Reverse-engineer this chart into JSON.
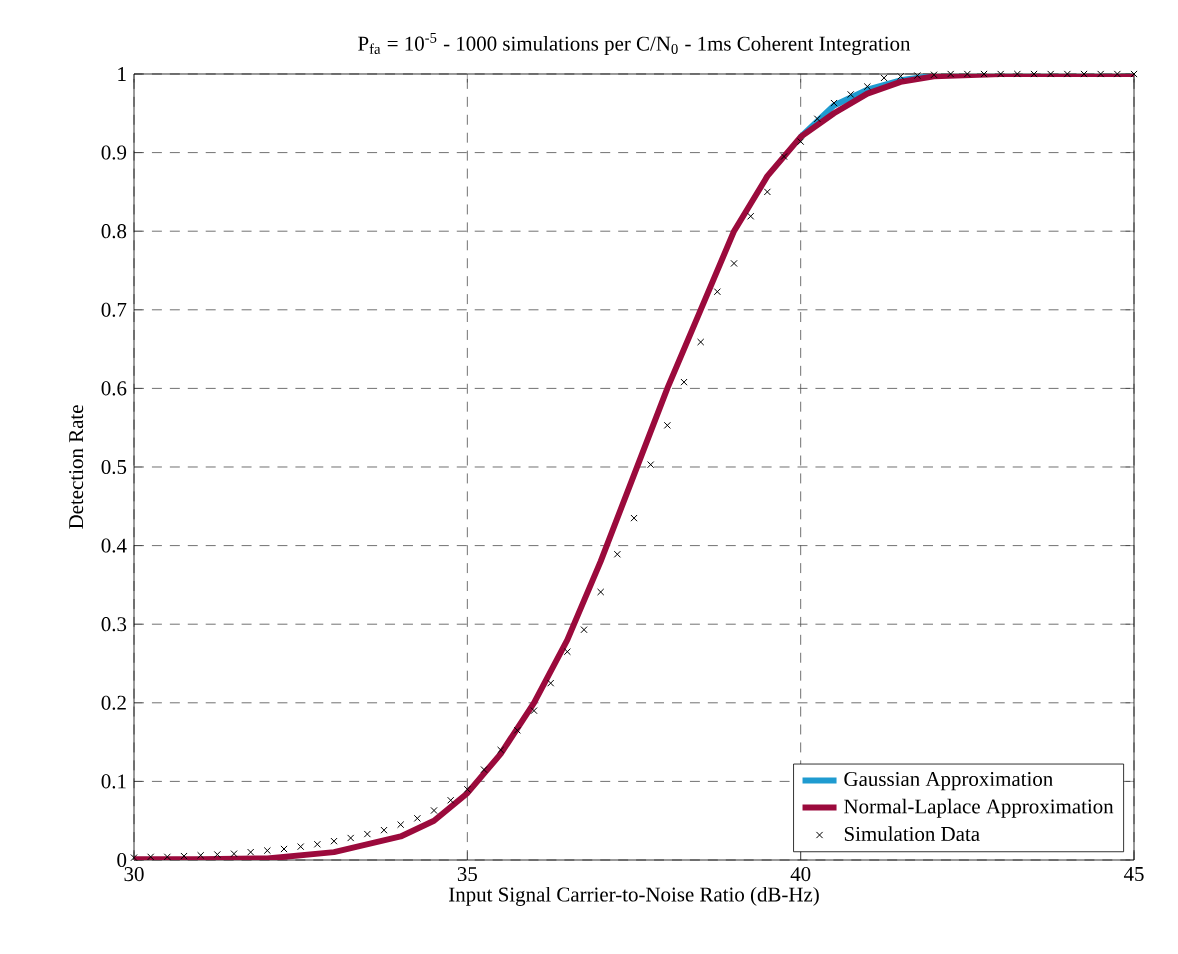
{
  "chart_data": {
    "type": "line",
    "title": "P$_{fa}$ = 10$^{-5}$ - 1000 simulations per C/N$_{0}$ - 1ms Coherent Integration",
    "xlabel": "Input Signal Carrier-to-Noise Ratio (dB-Hz)",
    "ylabel": "Detection Rate",
    "xlim": [
      30,
      45
    ],
    "ylim": [
      0,
      1
    ],
    "xticks": [
      30,
      35,
      40,
      45
    ],
    "yticks": [
      0,
      0.1,
      0.2,
      0.3,
      0.4,
      0.5,
      0.6,
      0.7,
      0.8,
      0.9,
      1
    ],
    "grid": true,
    "legend": "bottom right",
    "line_style": "solid",
    "series": [
      {
        "name": "Gaussian Approximation",
        "color": "#1f9bd0",
        "x": [
          40,
          40.5,
          41,
          41.5,
          42
        ],
        "values": [
          0.92,
          0.96,
          0.98,
          0.992,
          0.998
        ]
      },
      {
        "name": "Normal-Laplace Approximation",
        "color": "#9b0a3c",
        "x": [
          30,
          31,
          32,
          33,
          34,
          34.5,
          35,
          35.5,
          36,
          36.5,
          37,
          37.5,
          38,
          38.5,
          39,
          39.5,
          40,
          40.5,
          41,
          41.5,
          42,
          43,
          44,
          45
        ],
        "values": [
          0.001,
          0.001,
          0.002,
          0.01,
          0.03,
          0.05,
          0.085,
          0.135,
          0.2,
          0.28,
          0.38,
          0.49,
          0.6,
          0.7,
          0.8,
          0.87,
          0.92,
          0.95,
          0.975,
          0.99,
          0.997,
          1,
          1,
          1
        ]
      },
      {
        "name": "Simulation Data",
        "type": "scatter",
        "marker": "cross",
        "color": "#000000",
        "x": [
          30,
          30.25,
          30.5,
          30.75,
          31,
          31.25,
          31.5,
          31.75,
          32,
          32.25,
          32.5,
          32.75,
          33,
          33.25,
          33.5,
          33.75,
          34,
          34.25,
          34.5,
          34.75,
          35,
          35.25,
          35.5,
          35.75,
          36,
          36.25,
          36.5,
          36.75,
          37,
          37.25,
          37.5,
          37.75,
          38,
          38.25,
          38.5,
          38.75,
          39,
          39.25,
          39.5,
          39.75,
          40,
          40.25,
          40.5,
          40.75,
          41,
          41.25,
          41.5,
          41.75,
          42,
          42.25,
          42.5,
          42.75,
          43,
          43.25,
          43.5,
          43.75,
          44,
          44.25,
          44.5,
          44.75,
          45
        ],
        "values": [
          0.003,
          0.004,
          0.004,
          0.005,
          0.006,
          0.007,
          0.008,
          0.01,
          0.012,
          0.014,
          0.017,
          0.02,
          0.024,
          0.028,
          0.033,
          0.038,
          0.045,
          0.053,
          0.063,
          0.076,
          0.09,
          0.115,
          0.14,
          0.165,
          0.19,
          0.225,
          0.265,
          0.293,
          0.341,
          0.389,
          0.435,
          0.503,
          0.553,
          0.608,
          0.659,
          0.723,
          0.759,
          0.819,
          0.85,
          0.895,
          0.914,
          0.943,
          0.963,
          0.974,
          0.984,
          0.995,
          0.997,
          0.998,
          0.999,
          1,
          1,
          1,
          1,
          1,
          1,
          1,
          1,
          1,
          1,
          1,
          1
        ]
      }
    ]
  }
}
